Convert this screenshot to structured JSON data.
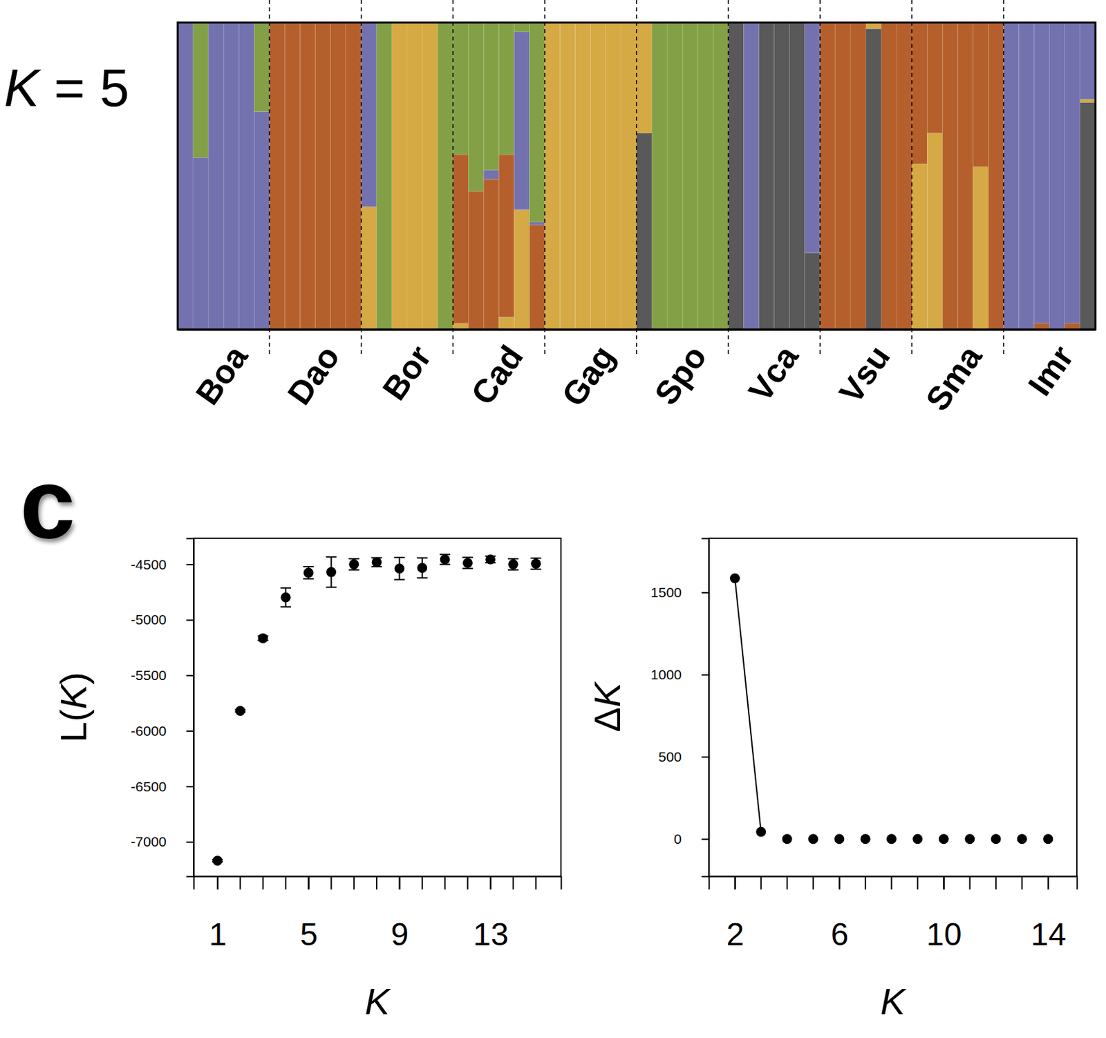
{
  "chart_data": [
    {
      "type": "bar",
      "stacked": true,
      "title": "K = 5",
      "tick_labels": "x",
      "categories": [
        null,
        null,
        "Boa",
        null,
        null,
        null,
        null,
        null,
        "Dao",
        null,
        null,
        null,
        null,
        null,
        "Bor",
        null,
        null,
        null,
        null,
        null,
        "Cad",
        null,
        null,
        null,
        null,
        null,
        "Gag",
        null,
        null,
        null,
        null,
        null,
        "Spo",
        null,
        null,
        null,
        null,
        null,
        "Vca",
        null,
        null,
        null,
        null,
        null,
        "Vsu",
        null,
        null,
        null,
        null,
        null,
        "Sma",
        null,
        null,
        null,
        null,
        null,
        "Imr",
        null,
        null,
        null
      ],
      "ylim": [
        0,
        1
      ],
      "series": [
        {
          "color": "#7472ae",
          "values": [
            1,
            0.56,
            1,
            1,
            1,
            0.71,
            0,
            0,
            0,
            0,
            0,
            0,
            0.6,
            0,
            0,
            0,
            0,
            0,
            0,
            0,
            0.03,
            0,
            0.58,
            0.01,
            0,
            0,
            0,
            0,
            0,
            0,
            0,
            0,
            0,
            0,
            0,
            0,
            0,
            1,
            0,
            0,
            0,
            0.75,
            0,
            0,
            0,
            0,
            0,
            0,
            0,
            0,
            0,
            0,
            0,
            0,
            1,
            1,
            0.98,
            1,
            0.98,
            0.25
          ]
        },
        {
          "color": "#b5602c",
          "values": [
            0,
            0,
            0,
            0,
            0,
            0,
            1,
            1,
            1,
            1,
            1,
            1,
            0,
            0,
            0,
            0,
            0,
            0,
            0.55,
            0.45,
            0.49,
            0.53,
            0,
            0.34,
            0,
            0,
            0,
            0,
            0,
            0,
            0,
            0,
            0,
            0,
            0,
            0,
            0,
            0,
            0,
            0,
            0,
            0,
            1,
            1,
            1,
            0,
            1,
            1,
            0.46,
            0.36,
            1,
            1,
            0.47,
            1,
            0,
            0,
            0.02,
            0,
            0.02,
            0
          ]
        },
        {
          "color": "#d5aa45",
          "values": [
            0,
            0,
            0,
            0,
            0,
            0,
            0,
            0,
            0,
            0,
            0,
            0,
            0.4,
            0,
            1,
            1,
            1,
            0,
            0.02,
            0,
            0,
            0.04,
            0.39,
            0,
            1,
            1,
            1,
            1,
            1,
            1,
            0.36,
            0,
            0,
            0,
            0,
            0,
            0,
            0,
            0,
            0,
            0,
            0,
            0,
            0,
            0,
            0.02,
            0,
            0,
            0.54,
            0.64,
            0,
            0,
            0.53,
            0,
            0,
            0,
            0,
            0,
            0,
            0.01
          ]
        },
        {
          "color": "#84a046",
          "values": [
            0,
            0.44,
            0,
            0,
            0,
            0.29,
            0,
            0,
            0,
            0,
            0,
            0,
            0,
            1,
            0,
            0,
            0,
            1,
            0.43,
            0.55,
            0.48,
            0.43,
            0.03,
            0.65,
            0,
            0,
            0,
            0,
            0,
            0,
            0,
            1,
            1,
            1,
            1,
            1,
            0,
            0,
            0,
            0,
            0,
            0,
            0,
            0,
            0,
            0,
            0,
            0,
            0,
            0,
            0,
            0,
            0,
            0,
            0,
            0,
            0,
            0,
            0,
            0
          ]
        },
        {
          "color": "#595959",
          "values": [
            0,
            0,
            0,
            0,
            0,
            0,
            0,
            0,
            0,
            0,
            0,
            0,
            0,
            0,
            0,
            0,
            0,
            0,
            0,
            0,
            0,
            0,
            0,
            0,
            0,
            0,
            0,
            0,
            0,
            0,
            0.64,
            0,
            0,
            0,
            0,
            0,
            1,
            0,
            1,
            1,
            1,
            0.25,
            0,
            0,
            0,
            0.98,
            0,
            0,
            0,
            0,
            0,
            0,
            0,
            0,
            0,
            0,
            0,
            0,
            0,
            0.74
          ]
        }
      ]
    },
    {
      "type": "scatter",
      "annotations": [
        "c"
      ],
      "x_label": "K",
      "y_label": "L(K)",
      "x": [
        1,
        2,
        3,
        4,
        5,
        6,
        7,
        8,
        9,
        10,
        11,
        12,
        13,
        14,
        15
      ],
      "xlim": [
        -0.05,
        16.1
      ],
      "xticks": [
        1,
        5,
        9,
        13
      ],
      "ylim": [
        -7310,
        -4265
      ],
      "yticks": [
        -7000,
        -6500,
        -6000,
        -5500,
        -5000,
        -4500
      ],
      "series": [
        {
          "color": "#000000",
          "marker": "circle",
          "values": [
            -7170,
            -5820,
            -5166,
            -4798,
            -4576,
            -4570,
            -4500,
            -4481,
            -4538,
            -4532,
            -4456,
            -4487,
            -4456,
            -4500,
            -4494
          ],
          "errors": [
            10,
            10,
            20,
            85,
            55,
            136,
            50,
            40,
            100,
            90,
            45,
            50,
            30,
            50,
            50
          ]
        }
      ]
    },
    {
      "type": "scatter",
      "x_label": "K",
      "y_label": "ΔK",
      "x": [
        2,
        3,
        4,
        5,
        6,
        7,
        8,
        9,
        10,
        11,
        12,
        13,
        14
      ],
      "xlim": [
        1,
        15.1
      ],
      "xticks": [
        2,
        6,
        10,
        14
      ],
      "ylim": [
        -227,
        1830
      ],
      "yticks": [
        0,
        500,
        1000,
        1500
      ],
      "series": [
        {
          "type": "line",
          "color": "#000000",
          "marker": "circle",
          "values": [
            1586,
            43,
            null,
            null,
            null,
            null,
            null,
            null,
            null,
            null,
            null,
            null,
            null
          ]
        },
        {
          "type": "scatter",
          "color": "#000000",
          "marker": "circle",
          "values": [
            null,
            null,
            0,
            0,
            0,
            0,
            0,
            0,
            0,
            0,
            0,
            0,
            0
          ]
        }
      ]
    }
  ]
}
